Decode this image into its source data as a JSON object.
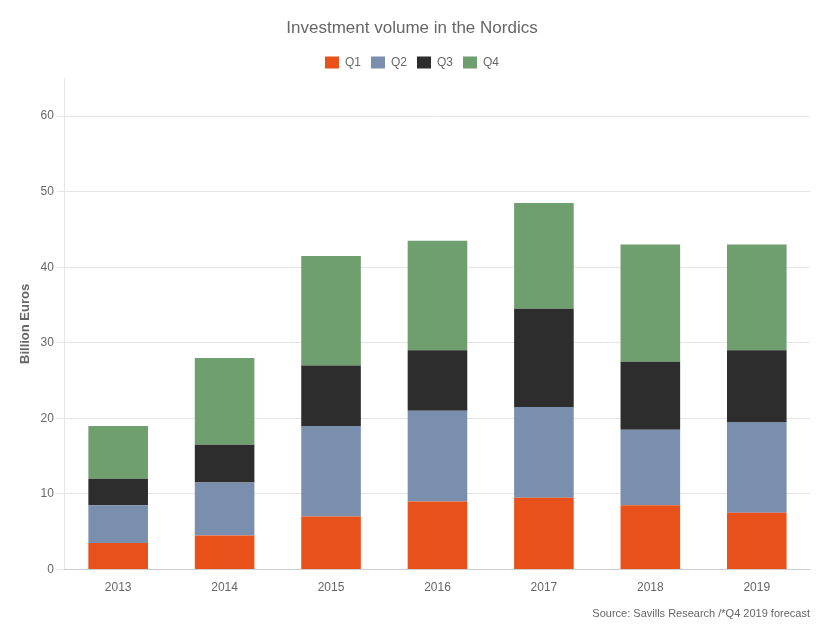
{
  "chart_data": {
    "type": "bar",
    "title": "Investment volume in the Nordics",
    "categories": [
      "2013",
      "2014",
      "2015",
      "2016",
      "2017",
      "2018",
      "2019"
    ],
    "series": [
      {
        "name": "Q1",
        "color": "#E8511A",
        "values": [
          3.5,
          4.5,
          7.0,
          9.0,
          9.5,
          8.5,
          7.5
        ]
      },
      {
        "name": "Q2",
        "color": "#7A8FAD",
        "values": [
          5.0,
          7.0,
          12.0,
          12.0,
          12.0,
          10.0,
          12.0
        ]
      },
      {
        "name": "Q3",
        "color": "#2D2D2D",
        "values": [
          3.5,
          5.0,
          8.0,
          8.0,
          13.0,
          9.0,
          9.5
        ]
      },
      {
        "name": "Q4",
        "color": "#6F9E6F",
        "values": [
          7.0,
          11.5,
          14.5,
          14.5,
          14.0,
          15.5,
          14.0
        ]
      }
    ],
    "ylabel": "Billion Euros",
    "ylim": [
      0,
      65
    ],
    "yticks": [
      0,
      10,
      20,
      30,
      40,
      50,
      60
    ],
    "stacked": true,
    "grid": true,
    "legend": "top",
    "annotations": [
      "Source: Savills Research /*Q4 2019 forecast"
    ]
  }
}
